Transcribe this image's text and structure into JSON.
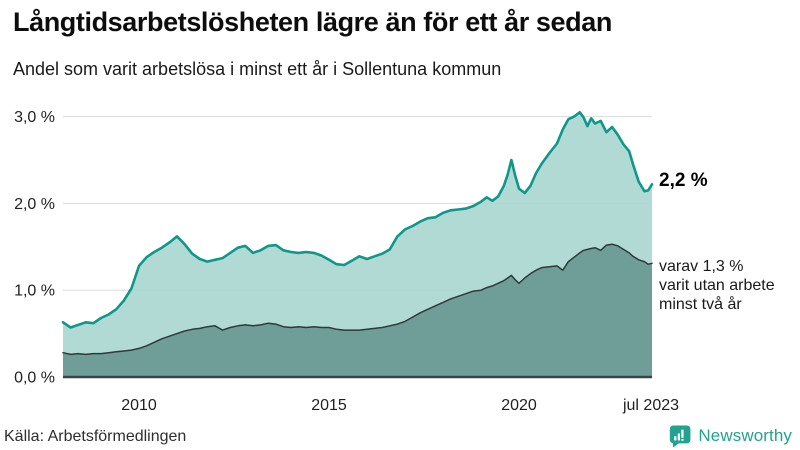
{
  "header": {
    "title": "Långtidsarbetslösheten lägre än för ett år sedan",
    "subtitle": "Andel som varit arbetslösa i minst ett år i Sollentuna kommun"
  },
  "chart_data": {
    "type": "area",
    "title": "Långtidsarbetslösheten lägre än för ett år sedan",
    "subtitle": "Andel som varit arbetslösa i minst ett år i Sollentuna kommun",
    "xlabel": "",
    "ylabel": "",
    "unit": "%",
    "xlim": [
      2008,
      2023.5
    ],
    "ylim": [
      0,
      3.2
    ],
    "grid": "horizontal",
    "legend_position": "end-of-line-labels",
    "x_ticks": [
      {
        "value": 2010,
        "label": "2010"
      },
      {
        "value": 2015,
        "label": "2015"
      },
      {
        "value": 2020,
        "label": "2020"
      },
      {
        "value": 2023.5,
        "label": "jul 2023"
      }
    ],
    "y_ticks": [
      {
        "value": 0,
        "label": "0,0 %"
      },
      {
        "value": 1,
        "label": "1,0 %"
      },
      {
        "value": 2,
        "label": "2,0 %"
      },
      {
        "value": 3,
        "label": "3,0 %"
      }
    ],
    "x": [
      2008.0,
      2008.2,
      2008.4,
      2008.6,
      2008.8,
      2009.0,
      2009.2,
      2009.4,
      2009.6,
      2009.8,
      2010.0,
      2010.2,
      2010.4,
      2010.6,
      2010.8,
      2011.0,
      2011.2,
      2011.4,
      2011.6,
      2011.8,
      2012.0,
      2012.2,
      2012.4,
      2012.6,
      2012.8,
      2013.0,
      2013.2,
      2013.4,
      2013.6,
      2013.8,
      2014.0,
      2014.2,
      2014.4,
      2014.6,
      2014.8,
      2015.0,
      2015.2,
      2015.4,
      2015.6,
      2015.8,
      2016.0,
      2016.2,
      2016.4,
      2016.6,
      2016.8,
      2017.0,
      2017.2,
      2017.4,
      2017.6,
      2017.8,
      2018.0,
      2018.2,
      2018.4,
      2018.6,
      2018.8,
      2019.0,
      2019.15,
      2019.3,
      2019.45,
      2019.6,
      2019.7,
      2019.8,
      2019.9,
      2020.0,
      2020.15,
      2020.3,
      2020.45,
      2020.6,
      2020.8,
      2021.0,
      2021.15,
      2021.3,
      2021.45,
      2021.6,
      2021.7,
      2021.8,
      2021.9,
      2022.0,
      2022.15,
      2022.3,
      2022.45,
      2022.6,
      2022.75,
      2022.9,
      2023.0,
      2023.15,
      2023.3,
      2023.4,
      2023.5
    ],
    "series": [
      {
        "name": "Andel som varit arbetslösa i minst ett år",
        "line_color": "#11978A",
        "fill_color": "#A9D6D0",
        "fill_opacity": 0.9,
        "line_width": 2.6,
        "end_value": "2,2 %",
        "values": [
          0.63,
          0.57,
          0.6,
          0.63,
          0.62,
          0.68,
          0.72,
          0.78,
          0.88,
          1.02,
          1.28,
          1.38,
          1.44,
          1.49,
          1.55,
          1.62,
          1.53,
          1.42,
          1.36,
          1.33,
          1.35,
          1.37,
          1.43,
          1.49,
          1.51,
          1.43,
          1.46,
          1.51,
          1.52,
          1.46,
          1.44,
          1.43,
          1.44,
          1.43,
          1.4,
          1.35,
          1.3,
          1.29,
          1.34,
          1.39,
          1.36,
          1.39,
          1.42,
          1.47,
          1.62,
          1.7,
          1.74,
          1.79,
          1.83,
          1.84,
          1.89,
          1.92,
          1.93,
          1.94,
          1.97,
          2.02,
          2.07,
          2.03,
          2.08,
          2.2,
          2.33,
          2.5,
          2.32,
          2.17,
          2.12,
          2.2,
          2.35,
          2.46,
          2.58,
          2.69,
          2.85,
          2.97,
          3.0,
          3.05,
          2.99,
          2.89,
          2.98,
          2.92,
          2.95,
          2.82,
          2.88,
          2.79,
          2.68,
          2.6,
          2.45,
          2.25,
          2.14,
          2.15,
          2.22
        ]
      },
      {
        "name": "varav utan arbete minst två år",
        "line_color": "#2E3A39",
        "fill_color": "#6B9B96",
        "fill_opacity": 0.95,
        "line_width": 1.5,
        "end_value": "1,3 %",
        "values": [
          0.28,
          0.26,
          0.27,
          0.26,
          0.27,
          0.27,
          0.28,
          0.29,
          0.3,
          0.31,
          0.33,
          0.36,
          0.4,
          0.44,
          0.47,
          0.5,
          0.53,
          0.55,
          0.56,
          0.58,
          0.59,
          0.54,
          0.57,
          0.59,
          0.6,
          0.59,
          0.6,
          0.62,
          0.61,
          0.58,
          0.57,
          0.58,
          0.57,
          0.58,
          0.57,
          0.57,
          0.55,
          0.54,
          0.54,
          0.54,
          0.55,
          0.56,
          0.57,
          0.59,
          0.61,
          0.64,
          0.69,
          0.74,
          0.78,
          0.82,
          0.86,
          0.9,
          0.93,
          0.96,
          0.99,
          1.0,
          1.03,
          1.05,
          1.08,
          1.11,
          1.14,
          1.17,
          1.12,
          1.08,
          1.14,
          1.19,
          1.23,
          1.26,
          1.27,
          1.28,
          1.23,
          1.33,
          1.38,
          1.43,
          1.46,
          1.47,
          1.48,
          1.49,
          1.46,
          1.52,
          1.53,
          1.51,
          1.47,
          1.43,
          1.39,
          1.35,
          1.33,
          1.3,
          1.31
        ]
      }
    ],
    "annotations": {
      "total_label": "2,2 %",
      "two_year_lines": [
        "varav 1,3 %",
        "varit utan arbete",
        "minst två år"
      ]
    },
    "colors": {
      "grid": "#DCDCDC",
      "axis": "#3A4545",
      "tick_text": "#1F1F1F"
    }
  },
  "footer": {
    "source": "Källa: Arbetsförmedlingen",
    "brand": "Newsworthy",
    "brand_color": "#23A191"
  }
}
